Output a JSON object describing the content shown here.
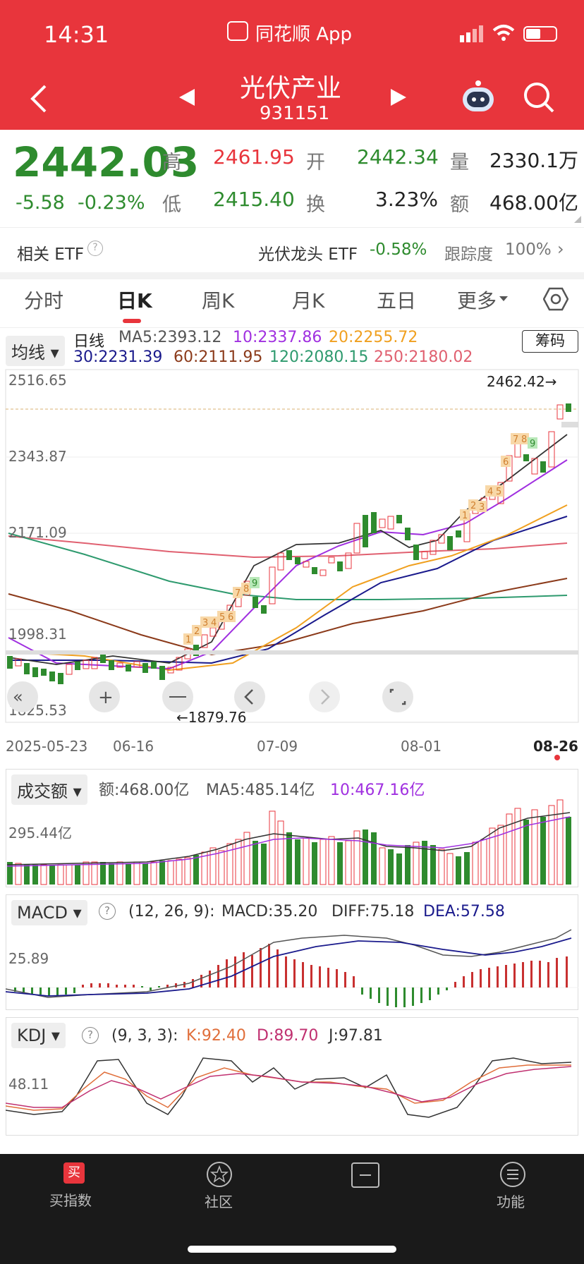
{
  "status": {
    "time": "14:31",
    "app": "同花顺 App"
  },
  "header": {
    "title": "光伏产业",
    "code": "931151"
  },
  "quote": {
    "price": "2442.03",
    "change": "-5.58",
    "change_pct": "-0.23%",
    "high_label": "高",
    "high": "2461.95",
    "low_label": "低",
    "low": "2415.40",
    "open_label": "开",
    "open": "2442.34",
    "turnover_label": "换",
    "turnover": "3.23%",
    "vol_label": "量",
    "vol": "2330.1万",
    "amt_label": "额",
    "amt": "468.00亿"
  },
  "etf": {
    "label": "相关 ETF",
    "name": "光伏龙头 ETF",
    "pct": "-0.58%",
    "track_label": "跟踪度",
    "track": "100%"
  },
  "tabs": [
    "分时",
    "日K",
    "周K",
    "月K",
    "五日",
    "更多"
  ],
  "ma": {
    "selector": "均线",
    "period": "日线",
    "ma5": "MA5:2393.12",
    "ma10": "10:2337.86",
    "ma20": "20:2255.72",
    "ma30": "30:2231.39",
    "ma60": "60:2111.95",
    "ma120": "120:2080.15",
    "ma250": "250:2180.02",
    "chip": "筹码"
  },
  "kline": {
    "y_labels": [
      "2516.65",
      "2343.87",
      "2171.09",
      "1998.31",
      "1825.53"
    ],
    "high_marker": "2462.42→",
    "low_marker": "←1879.76",
    "x_labels": [
      "2025-05-23",
      "06-16",
      "07-09",
      "08-01",
      "08-26"
    ]
  },
  "volume": {
    "selector": "成交额",
    "amt": "额:468.00亿",
    "ma5": "MA5:485.14亿",
    "ma10": "10:467.16亿",
    "y_label": "295.44亿"
  },
  "macd": {
    "selector": "MACD",
    "params": "(12, 26, 9):",
    "macd": "MACD:35.20",
    "diff": "DIFF:75.18",
    "dea": "DEA:57.58",
    "y_label": "25.89"
  },
  "kdj": {
    "selector": "KDJ",
    "params": "(9, 3, 3):",
    "k": "K:92.40",
    "d": "D:89.70",
    "j": "J:97.81",
    "y_label": "48.11"
  },
  "bottom_nav": [
    {
      "label": "买指数",
      "icon": "buy-icon"
    },
    {
      "label": "社区",
      "icon": "star-icon"
    },
    {
      "label": "",
      "icon": "minus-box-icon"
    },
    {
      "label": "功能",
      "icon": "menu-icon"
    }
  ],
  "colors": {
    "header": "#e8353c",
    "up": "#e8353c",
    "down": "#2e8b2e",
    "ma5": "#333333",
    "ma10": "#a030e0",
    "ma20": "#f0a020",
    "ma30": "#1a1a8c",
    "ma60": "#8b3a1a",
    "ma120": "#2e9a6e",
    "ma250": "#e06070"
  },
  "chart_data": {
    "type": "candlestick",
    "series": [
      {
        "name": "MA5",
        "values": [
          2393.12
        ]
      },
      {
        "name": "10",
        "values": [
          2337.86
        ]
      },
      {
        "name": "20",
        "values": [
          2255.72
        ]
      },
      {
        "name": "30",
        "values": [
          2231.39
        ]
      },
      {
        "name": "60",
        "values": [
          2111.95
        ]
      },
      {
        "name": "120",
        "values": [
          2080.15
        ]
      },
      {
        "name": "250",
        "values": [
          2180.02
        ]
      }
    ],
    "ylim": [
      1825.53,
      2516.65
    ]
  }
}
